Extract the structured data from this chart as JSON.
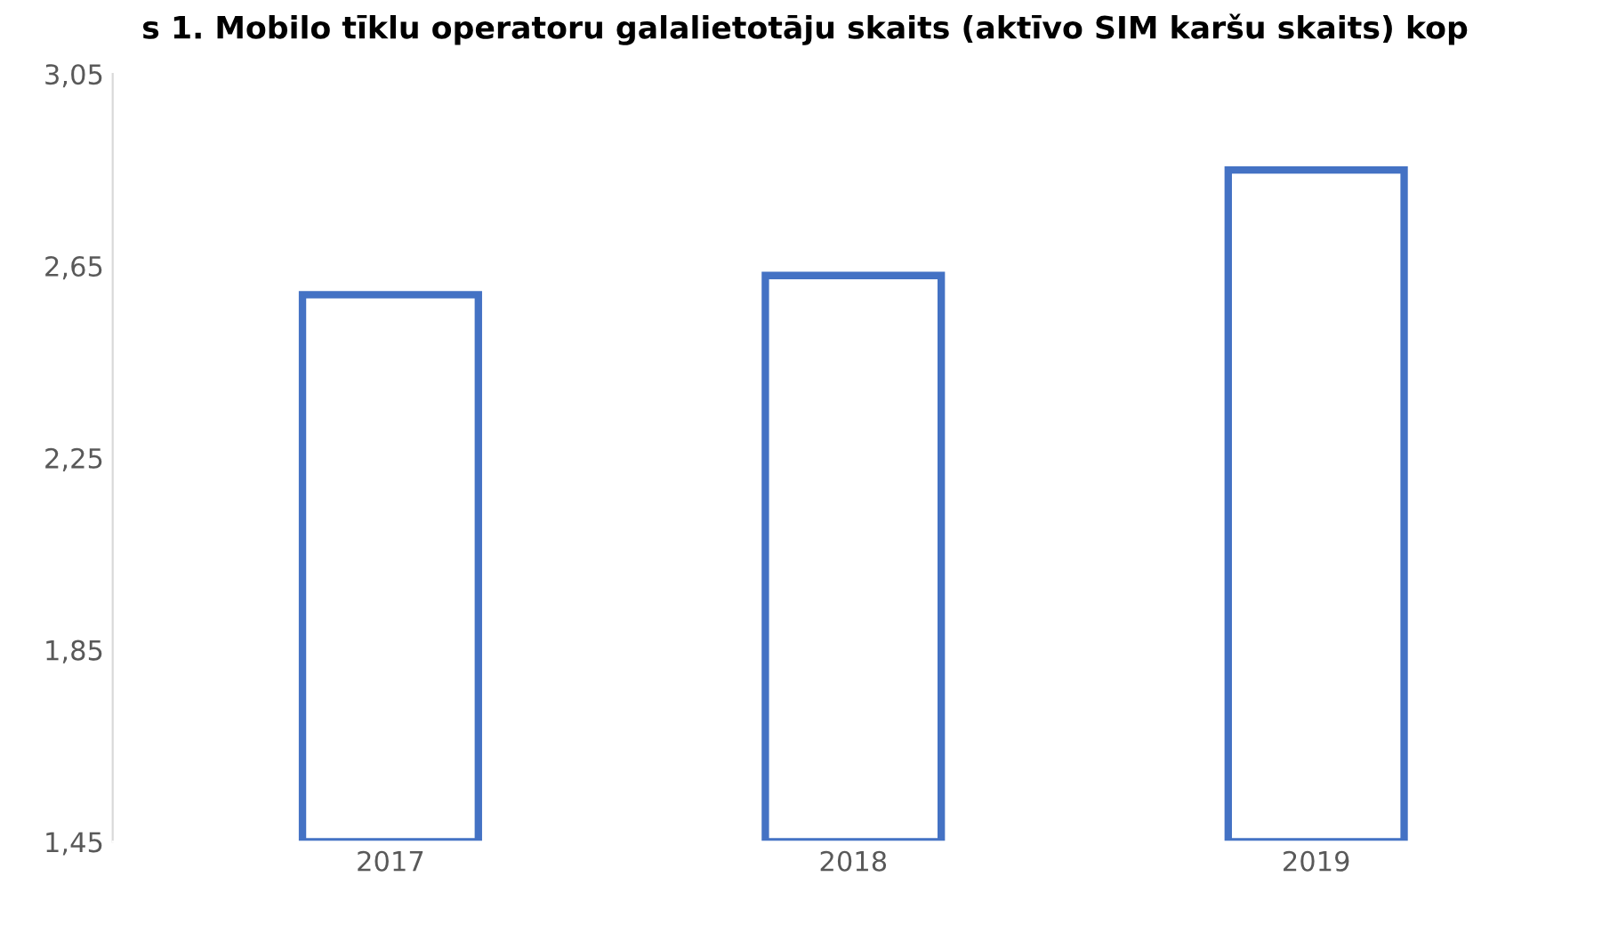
{
  "chart_data": {
    "type": "bar",
    "title": "s 1. Mobilo tīklu operatoru galalietotāju skaits (aktīvo SIM karšu skaits) kop",
    "categories": [
      "2017",
      "2018",
      "2019"
    ],
    "values": [
      2.59,
      2.63,
      2.85
    ],
    "color": "#4472c4",
    "ylim": [
      1.45,
      3.05
    ],
    "yticks": [
      {
        "value": 1.45,
        "label": "1,45"
      },
      {
        "value": 1.85,
        "label": "1,85"
      },
      {
        "value": 2.25,
        "label": "2,25"
      },
      {
        "value": 2.65,
        "label": "2,65"
      },
      {
        "value": 3.05,
        "label": "3,05"
      }
    ],
    "grid": false
  }
}
